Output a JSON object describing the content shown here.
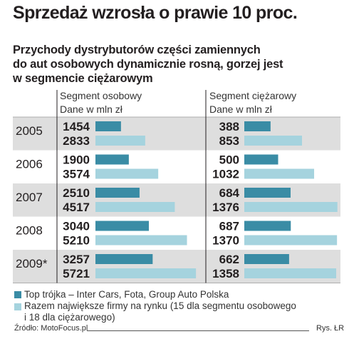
{
  "title": "Sprzedaż wzrosła o prawie 10 proc.",
  "subtitle": [
    "Przychody dystrybutorów części zamiennych",
    "do aut osobowych dynamicznie rosną, gorzej jest",
    "w segmencie ciężarowym"
  ],
  "colors": {
    "dark": "#3a8ca5",
    "light": "#a5d3de",
    "row_band": "#dedede",
    "divider": "#231f20"
  },
  "legend": [
    {
      "color": "#3a8ca5",
      "lines": [
        "Top trójka – Inter Cars, Fota, Group Auto Polska"
      ]
    },
    {
      "color": "#a5d3de",
      "lines": [
        "Razem największe firmy na rynku (15 dla segmentu osobowego",
        "i 18 dla ciężarowego)"
      ]
    }
  ],
  "source": "Źródło: MotoFocus.pl",
  "credit": "Rys. ŁR",
  "chart_data": {
    "type": "bar",
    "orientation": "horizontal",
    "categories": [
      "2005",
      "2006",
      "2007",
      "2008",
      "2009*"
    ],
    "panels": [
      {
        "header": [
          "Segment osobowy",
          "Dane w mln zł"
        ],
        "xlim": [
          0,
          6000
        ],
        "series": [
          {
            "name": "Top trójka – Inter Cars, Fota, Group Auto Polska",
            "values": [
              1454,
              1900,
              2510,
              3040,
              3257
            ]
          },
          {
            "name": "Razem największe firmy na rynku (15 dla segmentu osobowego i 18 dla ciężarowego)",
            "values": [
              2833,
              3574,
              4517,
              5210,
              5721
            ]
          }
        ]
      },
      {
        "header": [
          "Segment ciężarowy",
          "Dane w mln zł"
        ],
        "xlim": [
          0,
          1400
        ],
        "series": [
          {
            "name": "Top trójka – Inter Cars, Fota, Group Auto Polska",
            "values": [
              388,
              500,
              684,
              687,
              662
            ]
          },
          {
            "name": "Razem największe firmy na rynku (15 dla segmentu osobowego i 18 dla ciężarowego)",
            "values": [
              853,
              1032,
              1376,
              1370,
              1358
            ]
          }
        ]
      }
    ]
  }
}
